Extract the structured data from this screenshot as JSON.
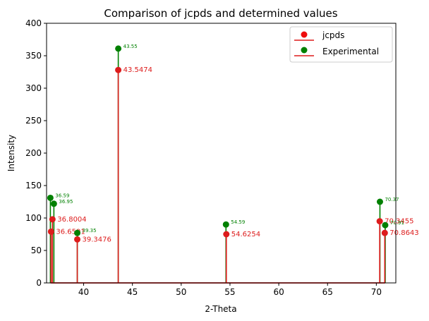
{
  "chart_data": {
    "type": "stem",
    "title": "Comparison of jcpds and determined values",
    "xlabel": "2-Theta",
    "ylabel": "Intensity",
    "xlim": [
      36.2,
      72.0
    ],
    "ylim": [
      0,
      400
    ],
    "xticks": [
      40,
      45,
      50,
      55,
      60,
      65,
      70
    ],
    "yticks": [
      0,
      50,
      100,
      150,
      200,
      250,
      300,
      350,
      400
    ],
    "legend_position": "top-right",
    "series": [
      {
        "name": "jcpds",
        "color": "#dd1c1c",
        "marker_color": "#dd1c1c",
        "points": [
          {
            "x": 36.6591,
            "y": 79,
            "label": "36.6591"
          },
          {
            "x": 36.8004,
            "y": 98,
            "label": "36.8004"
          },
          {
            "x": 39.3476,
            "y": 67,
            "label": "39.3476"
          },
          {
            "x": 43.5474,
            "y": 328,
            "label": "43.5474"
          },
          {
            "x": 54.6254,
            "y": 75,
            "label": "54.6254"
          },
          {
            "x": 70.3455,
            "y": 95,
            "label": "70.3455"
          },
          {
            "x": 70.8643,
            "y": 77,
            "label": "70.8643"
          }
        ]
      },
      {
        "name": "Experimental",
        "color": "#008000",
        "marker_color": "#008000",
        "points": [
          {
            "x": 36.59,
            "y": 131,
            "label": "36.59"
          },
          {
            "x": 36.95,
            "y": 122,
            "label": "36.95"
          },
          {
            "x": 39.35,
            "y": 77,
            "label": "39.35"
          },
          {
            "x": 43.55,
            "y": 361,
            "label": "43.55"
          },
          {
            "x": 54.59,
            "y": 90,
            "label": "54.59"
          },
          {
            "x": 70.37,
            "y": 125,
            "label": "70.37"
          },
          {
            "x": 70.91,
            "y": 89,
            "label": "70.91"
          }
        ]
      }
    ]
  }
}
